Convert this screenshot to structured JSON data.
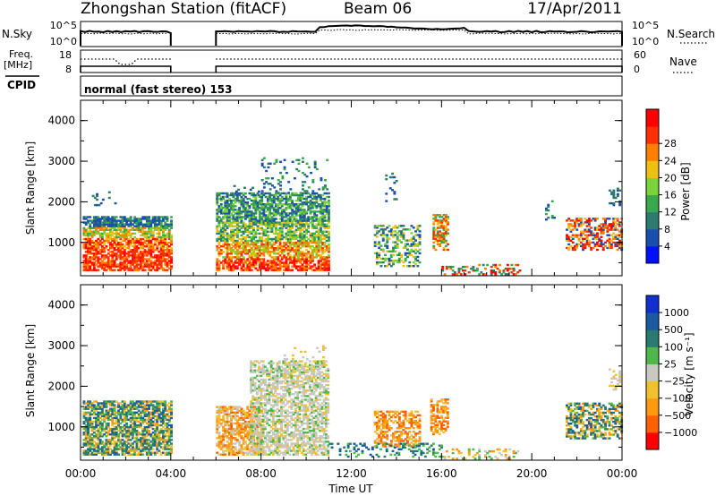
{
  "header": {
    "station": "Zhongshan Station (fitACF)",
    "beam": "Beam 06",
    "date": "17/Apr/2011"
  },
  "strip_nsky": {
    "left_label": "N.Sky",
    "left_ticks": [
      "10^5",
      "10^0"
    ],
    "right_label": "N.Search",
    "right_ticks": [
      "10^5",
      "10^0"
    ],
    "legend_line": "dotted"
  },
  "strip_freq": {
    "left_label_top": "Freq.",
    "left_label_bottom": "[MHz]",
    "left_ticks": [
      "18",
      "8"
    ],
    "right_label": "Nave",
    "right_ticks": [
      "60",
      "0"
    ],
    "legend_line": "dotted"
  },
  "cpid": {
    "label": "CPID",
    "value": "normal (fast stereo) 153"
  },
  "chart_data": [
    {
      "type": "heatmap",
      "name": "power",
      "ylabel": "Slant Range [km]",
      "xlabel": "Time UT",
      "x_ticks": [
        "00:00",
        "04:00",
        "08:00",
        "12:00",
        "16:00",
        "20:00",
        "00:00"
      ],
      "x_range_hours": [
        0,
        24
      ],
      "y_range_km": [
        180,
        4500
      ],
      "y_ticks": [
        "1000",
        "2000",
        "3000",
        "4000"
      ],
      "colorbar": {
        "label": "Power [dB]",
        "ticks": [
          "4",
          "8",
          "12",
          "16",
          "20",
          "24",
          "28"
        ],
        "colors": [
          "#0010ff",
          "#1a4fb0",
          "#2e7a6e",
          "#3aa84c",
          "#7cd23a",
          "#f0c010",
          "#ff8000",
          "#ff3000",
          "#ff0000"
        ]
      },
      "data_gaps_hours": [
        [
          4.0,
          6.0
        ]
      ]
    },
    {
      "type": "heatmap",
      "name": "velocity",
      "ylabel": "Slant Range [km]",
      "xlabel": "Time UT",
      "x_ticks": [
        "00:00",
        "04:00",
        "08:00",
        "12:00",
        "16:00",
        "20:00",
        "00:00"
      ],
      "x_range_hours": [
        0,
        24
      ],
      "y_range_km": [
        180,
        4500
      ],
      "y_ticks": [
        "1000",
        "2000",
        "3000",
        "4000"
      ],
      "colorbar": {
        "label": "Velocity [m s⁻¹]",
        "ticks": [
          "1000",
          "500",
          "100",
          "25",
          "−25",
          "−100",
          "−500",
          "−1000"
        ],
        "colors": [
          "#1030d0",
          "#1a5aa0",
          "#2a7a70",
          "#4fb848",
          "#c8c8c0",
          "#f0c030",
          "#ff9a10",
          "#ff6000",
          "#ff0000"
        ]
      },
      "data_gaps_hours": [
        [
          4.0,
          6.0
        ]
      ]
    }
  ],
  "xaxis": {
    "label": "Time UT",
    "ticks": [
      "00:00",
      "04:00",
      "08:00",
      "12:00",
      "16:00",
      "20:00",
      "00:00"
    ]
  }
}
